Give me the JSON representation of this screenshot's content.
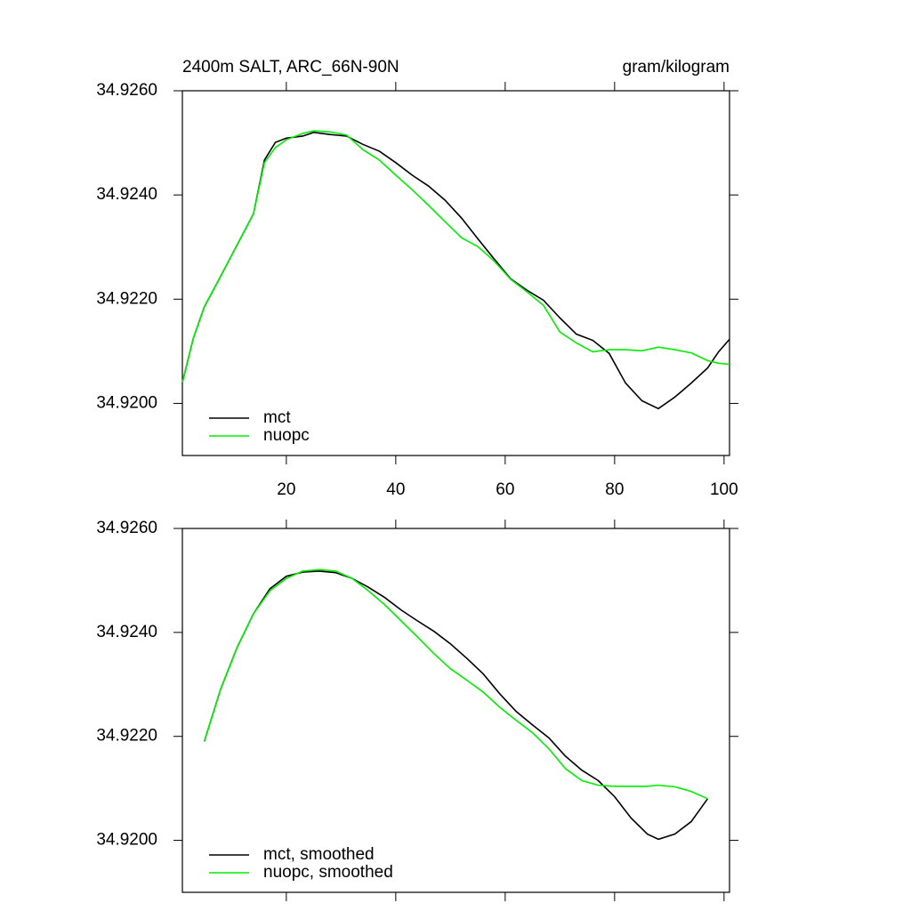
{
  "chart_data": [
    {
      "type": "line",
      "title": "2400m SALT, ARC_66N-90N",
      "units": "gram/kilogram",
      "x": [
        1,
        3,
        5,
        8,
        11,
        14,
        16,
        18,
        20,
        23,
        25,
        28,
        31,
        34,
        37,
        40,
        43,
        46,
        49,
        52,
        55,
        58,
        61,
        64,
        67,
        70,
        73,
        76,
        79,
        82,
        85,
        88,
        91,
        94,
        97,
        99,
        101
      ],
      "series": [
        {
          "name": "mct",
          "color": "#000000",
          "values": [
            34.9204,
            34.92125,
            34.92185,
            34.92244,
            34.92304,
            34.92364,
            34.92467,
            34.92501,
            34.92509,
            34.92513,
            34.9252,
            34.92516,
            34.92513,
            34.92497,
            34.92484,
            34.92462,
            34.92438,
            34.92417,
            34.9239,
            34.92356,
            34.92316,
            34.92277,
            34.92239,
            34.92217,
            34.92198,
            34.92164,
            34.92133,
            34.92121,
            34.92096,
            34.92039,
            34.92005,
            34.9199,
            34.92012,
            34.92039,
            34.92068,
            34.92099,
            34.92123
          ]
        },
        {
          "name": "nuopc",
          "color": "#00ee00",
          "values": [
            34.9204,
            34.92125,
            34.92185,
            34.92244,
            34.92304,
            34.92364,
            34.92462,
            34.92491,
            34.92506,
            34.92518,
            34.92523,
            34.92521,
            34.92515,
            34.92487,
            34.92467,
            34.92438,
            34.9241,
            34.9238,
            34.92349,
            34.92318,
            34.92301,
            34.92273,
            34.92238,
            34.92214,
            34.92188,
            34.92137,
            34.92116,
            34.92099,
            34.92103,
            34.92103,
            34.92101,
            34.92108,
            34.92103,
            34.92097,
            34.92082,
            34.92077,
            34.92075
          ]
        }
      ],
      "xlim": [
        1,
        101
      ],
      "xticks": [
        20,
        40,
        60,
        80,
        100
      ],
      "show_xtick_labels": true,
      "ylim": [
        34.919,
        34.926
      ],
      "yticks": [
        {
          "value": 34.926,
          "label": "34.9260"
        },
        {
          "value": 34.924,
          "label": "34.9240"
        },
        {
          "value": 34.922,
          "label": "34.9220"
        },
        {
          "value": 34.92,
          "label": "34.9200"
        }
      ],
      "legend": "lower left"
    },
    {
      "type": "line",
      "x": [
        5,
        8,
        11,
        14,
        17,
        20,
        23,
        26,
        29,
        32,
        35,
        38,
        41,
        44,
        47,
        50,
        53,
        56,
        59,
        62,
        65,
        68,
        71,
        74,
        77,
        80,
        83,
        86,
        88,
        91,
        94,
        97
      ],
      "series": [
        {
          "name": "mct, smoothed",
          "color": "#000000",
          "values": [
            34.9219,
            34.92291,
            34.92371,
            34.92436,
            34.92484,
            34.92508,
            34.92516,
            34.92518,
            34.92515,
            34.92504,
            34.92487,
            34.92467,
            34.92443,
            34.92422,
            34.92402,
            34.92378,
            34.9235,
            34.9232,
            34.92282,
            34.92248,
            34.92222,
            34.92197,
            34.92162,
            34.92135,
            34.92115,
            34.92084,
            34.92043,
            34.92012,
            34.92002,
            34.92012,
            34.92036,
            34.9208
          ]
        },
        {
          "name": "nuopc, smoothed",
          "color": "#00ee00",
          "values": [
            34.9219,
            34.92291,
            34.92371,
            34.92436,
            34.9248,
            34.92504,
            34.92518,
            34.92521,
            34.92518,
            34.92504,
            34.9248,
            34.92453,
            34.92422,
            34.92391,
            34.92359,
            34.9233,
            34.92308,
            34.92285,
            34.92256,
            34.92231,
            34.92207,
            34.92176,
            34.92138,
            34.92115,
            34.92106,
            34.92104,
            34.92104,
            34.92104,
            34.92106,
            34.92103,
            34.92094,
            34.9208
          ]
        }
      ],
      "xlim": [
        1,
        101
      ],
      "xticks": [
        20,
        40,
        60,
        80,
        100
      ],
      "show_xtick_labels": false,
      "ylim": [
        34.919,
        34.926
      ],
      "yticks": [
        {
          "value": 34.926,
          "label": "34.9260"
        },
        {
          "value": 34.924,
          "label": "34.9240"
        },
        {
          "value": 34.922,
          "label": "34.9220"
        },
        {
          "value": 34.92,
          "label": "34.9200"
        }
      ],
      "legend": "lower left"
    }
  ]
}
